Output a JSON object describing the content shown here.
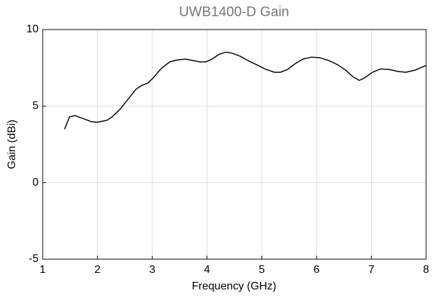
{
  "chart_data": {
    "type": "line",
    "title": "UWB1400-D Gain",
    "x_label": "Frequency (GHz)",
    "y_label": "Gain (dBi)",
    "x": [
      1.4,
      1.49,
      1.59,
      1.73,
      1.89,
      2.0,
      2.17,
      2.27,
      2.42,
      2.57,
      2.7,
      2.81,
      2.92,
      3.02,
      3.17,
      3.32,
      3.46,
      3.61,
      3.74,
      3.87,
      3.98,
      4.09,
      4.22,
      4.34,
      4.45,
      4.61,
      4.77,
      4.93,
      5.08,
      5.23,
      5.34,
      5.47,
      5.6,
      5.75,
      5.91,
      6.06,
      6.22,
      6.38,
      6.53,
      6.67,
      6.78,
      6.88,
      7.02,
      7.17,
      7.33,
      7.49,
      7.63,
      7.8,
      8.0
    ],
    "series": [
      {
        "name": "Gain",
        "color": "#000000",
        "values": [
          3.49,
          4.3,
          4.38,
          4.2,
          3.98,
          3.95,
          4.07,
          4.3,
          4.83,
          5.5,
          6.09,
          6.36,
          6.5,
          6.85,
          7.48,
          7.89,
          8.02,
          8.07,
          7.98,
          7.89,
          7.89,
          8.07,
          8.38,
          8.52,
          8.47,
          8.25,
          7.93,
          7.66,
          7.39,
          7.21,
          7.21,
          7.39,
          7.75,
          8.07,
          8.2,
          8.16,
          7.98,
          7.71,
          7.35,
          6.9,
          6.68,
          6.85,
          7.21,
          7.43,
          7.39,
          7.26,
          7.21,
          7.35,
          7.66
        ]
      }
    ],
    "xlim": [
      1,
      8
    ],
    "ylim": [
      -5,
      10
    ],
    "xticks": [
      1,
      2,
      3,
      4,
      5,
      6,
      7,
      8
    ],
    "yticks": [
      -5,
      0,
      5,
      10
    ],
    "grid": true
  }
}
